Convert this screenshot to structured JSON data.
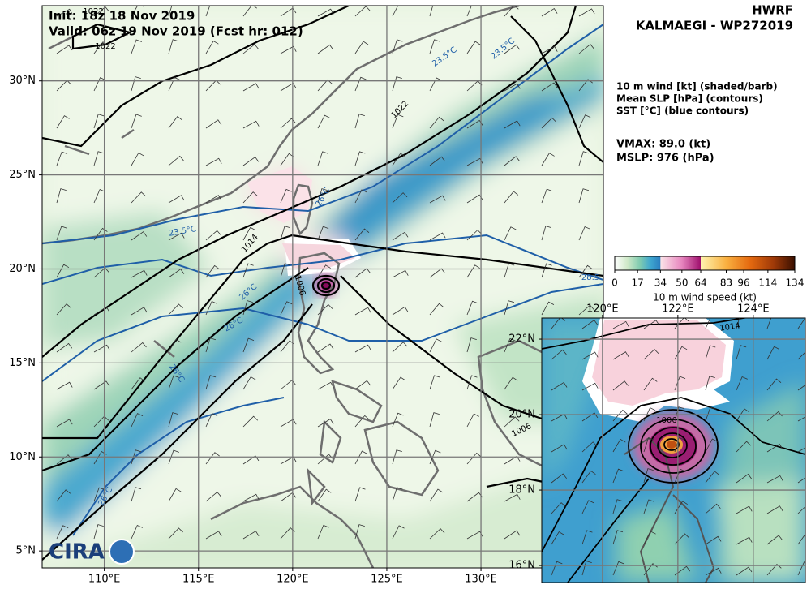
{
  "header": {
    "init": "Init: 18z 18 Nov 2019",
    "valid": "Valid: 06z 19 Nov 2019 (Fcst hr: 012)",
    "model": "HWRF",
    "storm": "KALMAEGI - WP272019"
  },
  "legend": [
    "10 m wind [kt] (shaded/barb)",
    "Mean SLP [hPa] (contours)",
    "SST [°C] (blue contours)"
  ],
  "stats": {
    "vmax": "VMAX:  89.0 (kt)",
    "mslp": "MSLP:  976 (hPa)"
  },
  "map": {
    "xlim": [
      106.7,
      136.5
    ],
    "ylim": [
      4.1,
      34.0
    ],
    "xticks": [
      {
        "value": 110,
        "label": "110°E"
      },
      {
        "value": 115,
        "label": "115°E"
      },
      {
        "value": 120,
        "label": "120°E"
      },
      {
        "value": 125,
        "label": "125°E"
      },
      {
        "value": 130,
        "label": "130°E"
      }
    ],
    "yticks": [
      {
        "value": 5,
        "label": "5°N"
      },
      {
        "value": 10,
        "label": "10°N"
      },
      {
        "value": 15,
        "label": "15°N"
      },
      {
        "value": 20,
        "label": "20°N"
      },
      {
        "value": 25,
        "label": "25°N"
      },
      {
        "value": 30,
        "label": "30°N"
      }
    ],
    "contour_labels": [
      "1022",
      "1022",
      "1022",
      "1014",
      "1006",
      "1006",
      "23.5°C",
      "23.5°C",
      "23.5°C",
      "26°C",
      "26°C",
      "26°C",
      "26°C",
      "26°C",
      "28.5"
    ]
  },
  "inset": {
    "xlim": [
      118.39,
      125.38
    ],
    "ylim": [
      15.55,
      22.56
    ],
    "xticks": [
      {
        "value": 120,
        "label": "120°E"
      },
      {
        "value": 122,
        "label": "122°E"
      },
      {
        "value": 124,
        "label": "124°E"
      }
    ],
    "yticks": [
      {
        "value": 16,
        "label": "16°N"
      },
      {
        "value": 18,
        "label": "18°N"
      },
      {
        "value": 20,
        "label": "20°N"
      },
      {
        "value": 22,
        "label": "22°N"
      }
    ],
    "contour_labels": [
      "1014",
      "1006"
    ]
  },
  "colorbar": {
    "lim": [
      0,
      134
    ],
    "ticks": [
      0,
      17,
      34,
      50,
      64,
      83,
      96,
      114,
      134
    ],
    "label": "10 m wind speed (kt)"
  },
  "logo": "CIRA"
}
